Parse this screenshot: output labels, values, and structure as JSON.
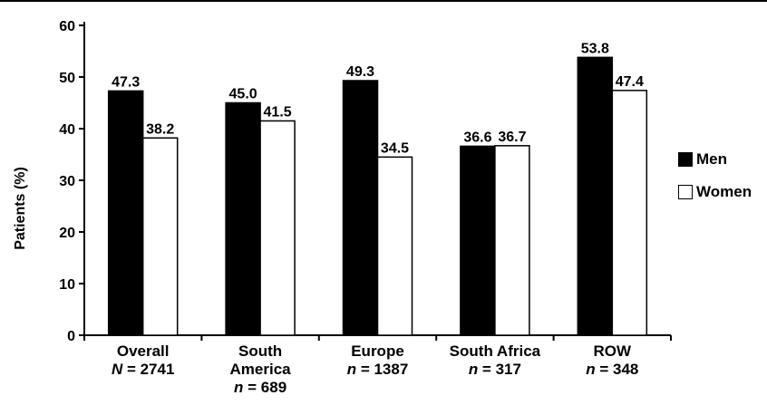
{
  "chart_data": {
    "type": "bar",
    "title": "",
    "xlabel": "",
    "ylabel": "Patients (%)",
    "ylim": [
      0,
      60
    ],
    "yticks": [
      0,
      10,
      20,
      30,
      40,
      50,
      60
    ],
    "grid": false,
    "legend_position": "right",
    "categories": [
      {
        "name": "Overall",
        "line2": "",
        "n_label": "N",
        "n_value": "= 2741"
      },
      {
        "name": "South",
        "line2": "America",
        "n_label": "n",
        "n_value": "= 689"
      },
      {
        "name": "Europe",
        "line2": "",
        "n_label": "n",
        "n_value": "= 1387"
      },
      {
        "name": "South Africa",
        "line2": "",
        "n_label": "n",
        "n_value": "= 317"
      },
      {
        "name": "ROW",
        "line2": "",
        "n_label": "n",
        "n_value": "= 348"
      }
    ],
    "series": [
      {
        "name": "Men",
        "color": "#000000",
        "values": [
          47.3,
          45.0,
          49.3,
          36.6,
          53.8
        ],
        "labels": [
          "47.3",
          "45.0",
          "49.3",
          "36.6",
          "53.8"
        ]
      },
      {
        "name": "Women",
        "color": "#ffffff",
        "values": [
          38.2,
          41.5,
          34.5,
          36.7,
          47.4
        ],
        "labels": [
          "38.2",
          "41.5",
          "34.5",
          "36.7",
          "47.4"
        ]
      }
    ]
  }
}
